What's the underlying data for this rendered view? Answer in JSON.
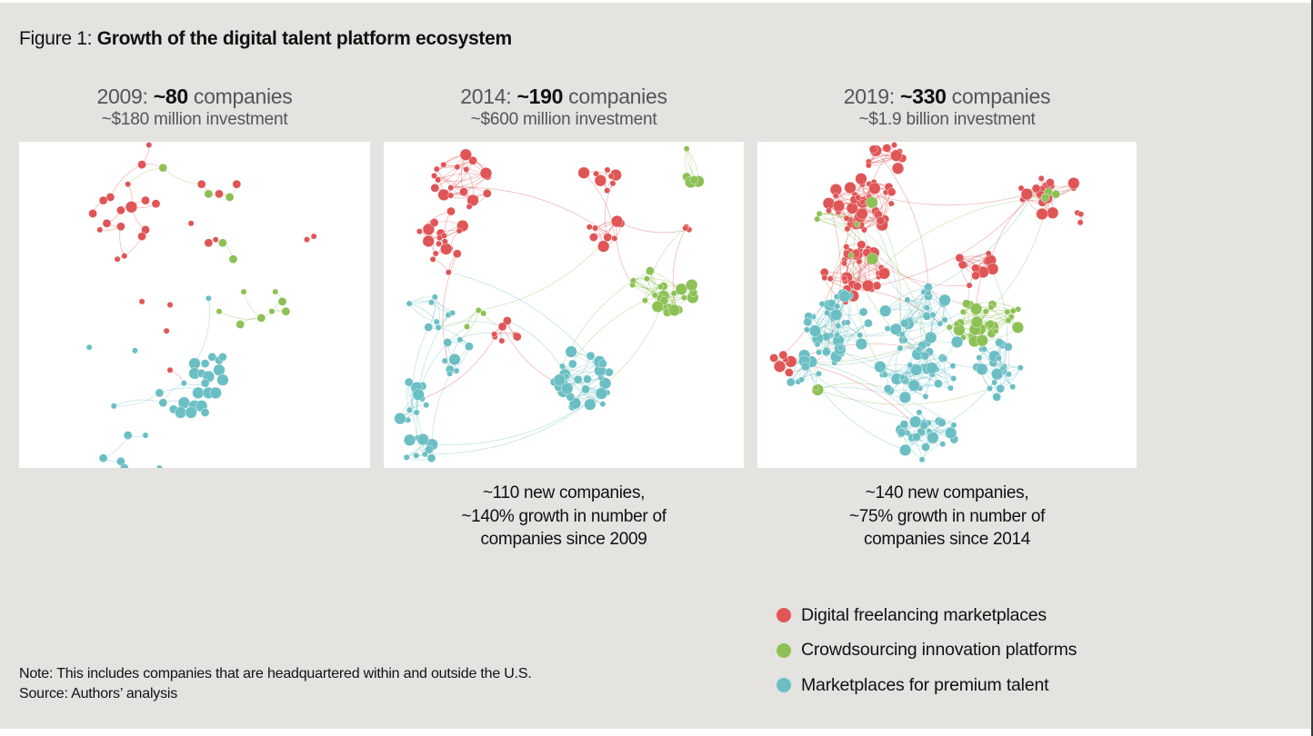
{
  "figure": {
    "prefix": "Figure 1: ",
    "title": "Growth of the digital talent platform ecosystem"
  },
  "panels": [
    {
      "year_prefix": "2009: ",
      "count": "~80",
      "count_suffix": " companies",
      "investment": "~$180 million investment",
      "footnote": []
    },
    {
      "year_prefix": "2014: ",
      "count": "~190",
      "count_suffix": " companies",
      "investment": "~$600 million investment",
      "footnote": [
        "~110 new companies,",
        "~140% growth in number of",
        "companies since 2009"
      ]
    },
    {
      "year_prefix": "2019: ",
      "count": "~330",
      "count_suffix": " companies",
      "investment": "~$1.9 billion investment",
      "footnote": [
        "~140 new companies,",
        "~75% growth in number of",
        "companies since 2014"
      ]
    }
  ],
  "legend": [
    {
      "label": "Digital freelancing marketplaces",
      "color": "#e05556",
      "key": "r"
    },
    {
      "label": "Crowdsourcing innovation platforms",
      "color": "#8dc155",
      "key": "g"
    },
    {
      "label": "Marketplaces for premium talent",
      "color": "#6bbfc4",
      "key": "t"
    }
  ],
  "note": "Note: This includes companies that are headquartered within and outside the U.S.",
  "source": "Source: Authors’ analysis",
  "chart_data": {
    "type": "network",
    "title": "Growth of the digital talent platform ecosystem",
    "categories": {
      "r": "Digital freelancing marketplaces",
      "g": "Crowdsourcing innovation platforms",
      "t": "Marketplaces for premium talent"
    },
    "colors": {
      "r": "#e05556",
      "g": "#8dc155",
      "t": "#6bbfc4"
    },
    "note": "Node coordinates are normalized layout positions (0-1) within each panel; s = relative node weight (1 small, 2 medium, 3 large). Networks are approximate transcriptions of the force-directed graphs.",
    "networks": [
      {
        "year": 2009,
        "companies": 80,
        "investment_usd": "180 million",
        "nodes": [
          [
            "r",
            0.37,
            0.01,
            1
          ],
          [
            "r",
            0.35,
            0.07,
            2
          ],
          [
            "r",
            0.26,
            0.17,
            2
          ],
          [
            "r",
            0.24,
            0.18,
            2
          ],
          [
            "r",
            0.21,
            0.22,
            2
          ],
          [
            "g",
            0.41,
            0.08,
            2
          ],
          [
            "r",
            0.31,
            0.13,
            1
          ],
          [
            "r",
            0.32,
            0.2,
            3
          ],
          [
            "r",
            0.29,
            0.21,
            2
          ],
          [
            "r",
            0.36,
            0.18,
            2
          ],
          [
            "r",
            0.39,
            0.19,
            2
          ],
          [
            "r",
            0.25,
            0.25,
            2
          ],
          [
            "r",
            0.29,
            0.26,
            2
          ],
          [
            "r",
            0.23,
            0.27,
            1
          ],
          [
            "r",
            0.36,
            0.27,
            2
          ],
          [
            "r",
            0.35,
            0.29,
            2
          ],
          [
            "r",
            0.3,
            0.35,
            1
          ],
          [
            "r",
            0.28,
            0.36,
            1
          ],
          [
            "r",
            0.52,
            0.13,
            2
          ],
          [
            "g",
            0.54,
            0.16,
            2
          ],
          [
            "r",
            0.57,
            0.16,
            2
          ],
          [
            "g",
            0.6,
            0.17,
            2
          ],
          [
            "r",
            0.62,
            0.13,
            2
          ],
          [
            "r",
            0.49,
            0.25,
            1
          ],
          [
            "r",
            0.54,
            0.31,
            2
          ],
          [
            "r",
            0.56,
            0.3,
            1
          ],
          [
            "g",
            0.58,
            0.31,
            2
          ],
          [
            "g",
            0.61,
            0.36,
            2
          ],
          [
            "r",
            0.82,
            0.3,
            1
          ],
          [
            "r",
            0.84,
            0.29,
            1
          ],
          [
            "r",
            0.35,
            0.49,
            1
          ],
          [
            "r",
            0.43,
            0.5,
            1
          ],
          [
            "r",
            0.42,
            0.58,
            1
          ],
          [
            "t",
            0.54,
            0.48,
            1
          ],
          [
            "g",
            0.64,
            0.46,
            1
          ],
          [
            "g",
            0.73,
            0.46,
            1
          ],
          [
            "g",
            0.75,
            0.49,
            2
          ],
          [
            "g",
            0.72,
            0.52,
            1
          ],
          [
            "g",
            0.76,
            0.52,
            2
          ],
          [
            "g",
            0.69,
            0.54,
            2
          ],
          [
            "g",
            0.57,
            0.52,
            1
          ],
          [
            "g",
            0.63,
            0.56,
            2
          ],
          [
            "t",
            0.2,
            0.63,
            1
          ],
          [
            "t",
            0.33,
            0.64,
            1
          ],
          [
            "r",
            0.43,
            0.7,
            1
          ],
          [
            "t",
            0.5,
            0.68,
            3
          ],
          [
            "t",
            0.53,
            0.68,
            2
          ],
          [
            "t",
            0.55,
            0.66,
            2
          ],
          [
            "t",
            0.57,
            0.67,
            2
          ],
          [
            "t",
            0.58,
            0.66,
            2
          ],
          [
            "t",
            0.5,
            0.71,
            3
          ],
          [
            "t",
            0.52,
            0.71,
            2
          ],
          [
            "t",
            0.54,
            0.72,
            3
          ],
          [
            "t",
            0.57,
            0.7,
            3
          ],
          [
            "t",
            0.58,
            0.73,
            3
          ],
          [
            "t",
            0.53,
            0.74,
            2
          ],
          [
            "t",
            0.47,
            0.74,
            1
          ],
          [
            "t",
            0.51,
            0.77,
            3
          ],
          [
            "t",
            0.54,
            0.77,
            3
          ],
          [
            "t",
            0.56,
            0.77,
            3
          ],
          [
            "t",
            0.4,
            0.77,
            2
          ],
          [
            "t",
            0.41,
            0.8,
            2
          ],
          [
            "t",
            0.47,
            0.8,
            3
          ],
          [
            "t",
            0.5,
            0.81,
            3
          ],
          [
            "t",
            0.52,
            0.81,
            3
          ],
          [
            "t",
            0.44,
            0.82,
            2
          ],
          [
            "t",
            0.46,
            0.83,
            3
          ],
          [
            "t",
            0.49,
            0.83,
            3
          ],
          [
            "t",
            0.53,
            0.83,
            2
          ],
          [
            "t",
            0.27,
            0.81,
            1
          ],
          [
            "t",
            0.31,
            0.9,
            2
          ],
          [
            "t",
            0.36,
            0.9,
            1
          ],
          [
            "t",
            0.24,
            0.97,
            2
          ],
          [
            "t",
            0.29,
            0.98,
            2
          ],
          [
            "t",
            0.3,
            1.0,
            2
          ],
          [
            "t",
            0.4,
            1.0,
            1
          ]
        ],
        "edges": [
          [
            0,
            1
          ],
          [
            1,
            2
          ],
          [
            2,
            3
          ],
          [
            3,
            4
          ],
          [
            1,
            5
          ],
          [
            5,
            6
          ],
          [
            6,
            7
          ],
          [
            7,
            8
          ],
          [
            7,
            9
          ],
          [
            7,
            10
          ],
          [
            8,
            11
          ],
          [
            11,
            12
          ],
          [
            12,
            13
          ],
          [
            7,
            14
          ],
          [
            14,
            15
          ],
          [
            12,
            16
          ],
          [
            15,
            17
          ],
          [
            5,
            18
          ],
          [
            18,
            19
          ],
          [
            19,
            20
          ],
          [
            20,
            21
          ],
          [
            21,
            22
          ],
          [
            24,
            25
          ],
          [
            25,
            26
          ],
          [
            26,
            27
          ],
          [
            28,
            29
          ],
          [
            33,
            45
          ],
          [
            34,
            39
          ],
          [
            35,
            36
          ],
          [
            36,
            37
          ],
          [
            37,
            38
          ],
          [
            38,
            39
          ],
          [
            39,
            40
          ],
          [
            39,
            41
          ],
          [
            45,
            46
          ],
          [
            46,
            47
          ],
          [
            47,
            48
          ],
          [
            48,
            49
          ],
          [
            45,
            50
          ],
          [
            50,
            51
          ],
          [
            51,
            52
          ],
          [
            52,
            53
          ],
          [
            53,
            54
          ],
          [
            52,
            55
          ],
          [
            55,
            56
          ],
          [
            56,
            61
          ],
          [
            50,
            57
          ],
          [
            57,
            58
          ],
          [
            58,
            59
          ],
          [
            59,
            60
          ],
          [
            61,
            62
          ],
          [
            62,
            63
          ],
          [
            63,
            64
          ],
          [
            64,
            65
          ],
          [
            65,
            66
          ],
          [
            66,
            67
          ],
          [
            67,
            68
          ],
          [
            57,
            63
          ],
          [
            60,
            69
          ],
          [
            61,
            69
          ],
          [
            70,
            72
          ],
          [
            72,
            73
          ],
          [
            73,
            74
          ],
          [
            70,
            71
          ],
          [
            44,
            56
          ]
        ]
      },
      {
        "year": 2014,
        "companies": 190,
        "investment_usd": "600 million",
        "generated": true
      },
      {
        "year": 2019,
        "companies": 330,
        "investment_usd": "1.9 billion",
        "generated": true
      }
    ]
  }
}
